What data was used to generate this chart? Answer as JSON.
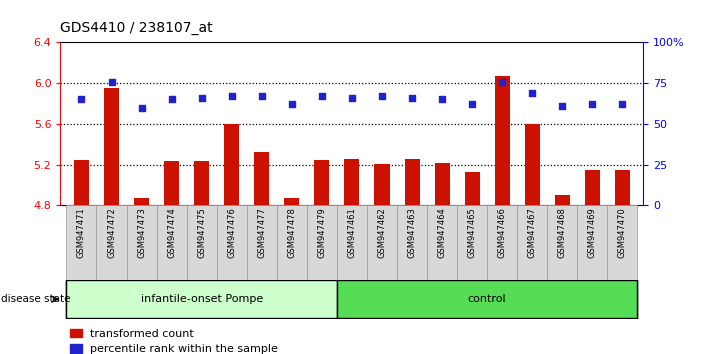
{
  "title": "GDS4410 / 238107_at",
  "samples": [
    "GSM947471",
    "GSM947472",
    "GSM947473",
    "GSM947474",
    "GSM947475",
    "GSM947476",
    "GSM947477",
    "GSM947478",
    "GSM947479",
    "GSM947461",
    "GSM947462",
    "GSM947463",
    "GSM947464",
    "GSM947465",
    "GSM947466",
    "GSM947467",
    "GSM947468",
    "GSM947469",
    "GSM947470"
  ],
  "transformed_count": [
    5.25,
    5.95,
    4.87,
    5.24,
    5.24,
    5.6,
    5.32,
    4.87,
    5.25,
    5.26,
    5.21,
    5.26,
    5.22,
    5.13,
    6.07,
    5.6,
    4.9,
    5.15,
    5.15
  ],
  "percentile_rank": [
    65,
    76,
    60,
    65,
    66,
    67,
    67,
    62,
    67,
    66,
    67,
    66,
    65,
    62,
    76,
    69,
    61,
    62,
    62
  ],
  "group_labels": [
    "infantile-onset Pompe",
    "control"
  ],
  "group_sizes": [
    9,
    10
  ],
  "group_colors_light": [
    "#ccffcc",
    "#99ee99"
  ],
  "group_colors_dark": [
    "#44cc44",
    "#44cc44"
  ],
  "bar_color": "#cc1100",
  "marker_color": "#2222cc",
  "ylim_left": [
    4.8,
    6.4
  ],
  "ylim_right": [
    0,
    100
  ],
  "yticks_left": [
    4.8,
    5.2,
    5.6,
    6.0,
    6.4
  ],
  "yticks_right": [
    0,
    25,
    50,
    75,
    100
  ],
  "ytick_labels_right": [
    "0",
    "25",
    "50",
    "75",
    "100%"
  ],
  "hlines": [
    5.2,
    5.6,
    6.0
  ],
  "legend_items": [
    "transformed count",
    "percentile rank within the sample"
  ]
}
